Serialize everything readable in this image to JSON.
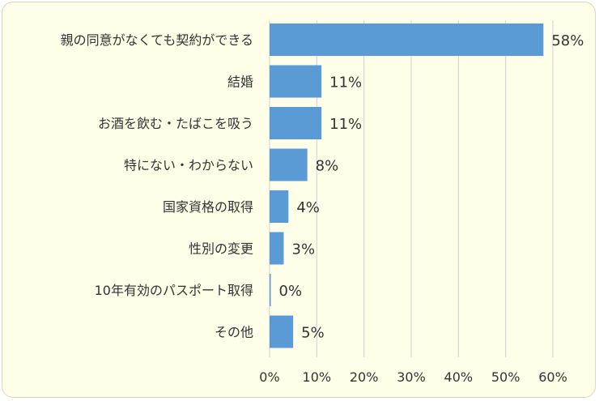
{
  "chart_data": {
    "type": "bar",
    "orientation": "horizontal",
    "categories": [
      "親の同意がなくても契約ができる",
      "結婚",
      "お酒を飲む・たばこを吸う",
      "特にない・わからない",
      "国家資格の取得",
      "性別の変更",
      "10年有効のパスポート取得",
      "その他"
    ],
    "values": [
      58,
      11,
      11,
      8,
      4,
      3,
      0,
      5
    ],
    "value_labels": [
      "58%",
      "11%",
      "11%",
      "8%",
      "4%",
      "3%",
      "0%",
      "5%"
    ],
    "xticks": [
      0,
      10,
      20,
      30,
      40,
      50,
      60
    ],
    "xtick_labels": [
      "0%",
      "10%",
      "20%",
      "30%",
      "40%",
      "50%",
      "60%"
    ],
    "xlim": [
      0,
      60
    ],
    "grid": true,
    "bar_color": "#5b9bd5",
    "grid_color": "#d0d0d0",
    "background_color": "#fefee9"
  }
}
